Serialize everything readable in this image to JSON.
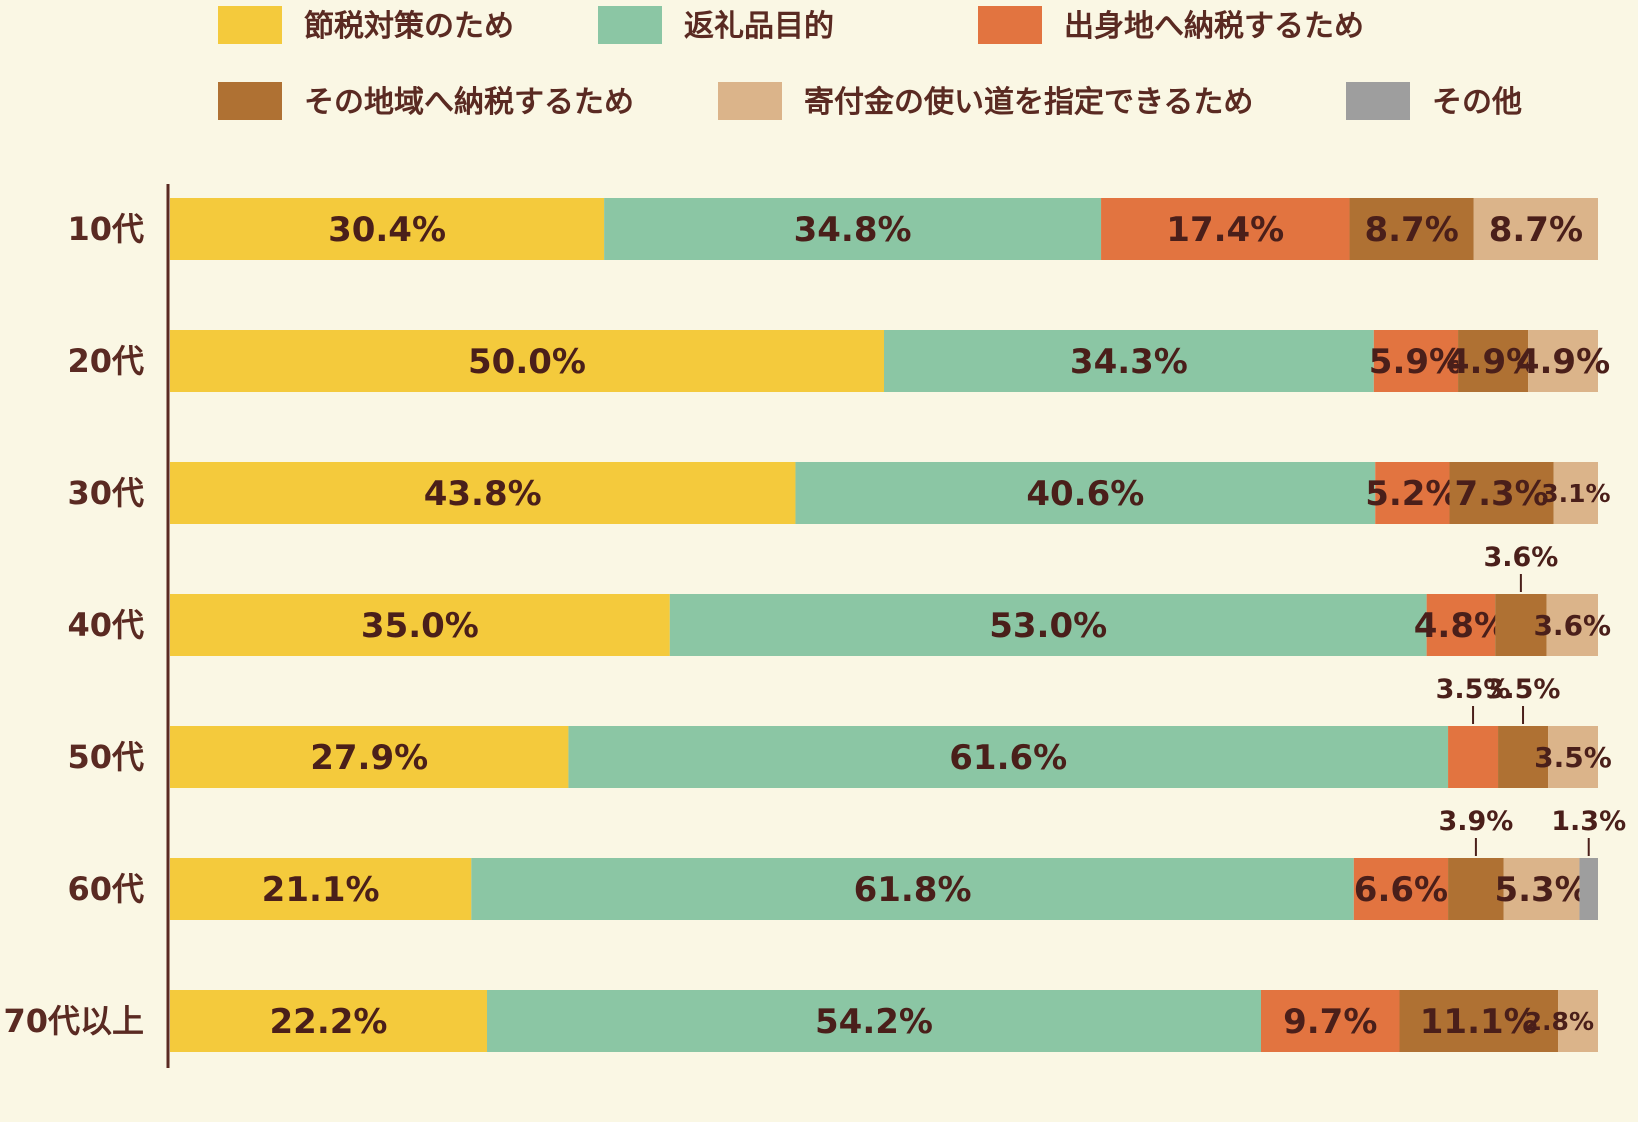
{
  "chart_data": {
    "type": "bar",
    "orientation": "horizontal",
    "stacked": true,
    "unit": "%",
    "legend_position": "top",
    "categories": [
      "10代",
      "20代",
      "30代",
      "40代",
      "50代",
      "60代",
      "70代以上"
    ],
    "series": [
      {
        "name": "節税対策のため",
        "color": "#f4ca3c",
        "values": [
          30.4,
          50.0,
          43.8,
          35.0,
          27.9,
          21.1,
          22.2
        ]
      },
      {
        "name": "返礼品目的",
        "color": "#8bc6a4",
        "values": [
          34.8,
          34.3,
          40.6,
          53.0,
          61.6,
          61.8,
          54.2
        ]
      },
      {
        "name": "出身地へ納税するため",
        "color": "#e27440",
        "values": [
          17.4,
          5.9,
          5.2,
          4.8,
          3.5,
          6.6,
          9.7
        ]
      },
      {
        "name": "その地域へ納税するため",
        "color": "#af7133",
        "values": [
          8.7,
          4.9,
          7.3,
          3.6,
          3.5,
          3.9,
          11.1
        ]
      },
      {
        "name": "寄付金の使い道を指定できるため",
        "color": "#dbb48a",
        "values": [
          8.7,
          4.9,
          3.1,
          3.6,
          3.5,
          5.3,
          2.8
        ]
      },
      {
        "name": "その他",
        "color": "#9e9e9e",
        "values": [
          0,
          0,
          0,
          0,
          0,
          1.3,
          0
        ]
      }
    ],
    "labels": [
      [
        "30.4%",
        "34.8%",
        "17.4%",
        "8.7%",
        "8.7%",
        ""
      ],
      [
        "50.0%",
        "34.3%",
        "5.9%",
        "4.9%",
        "4.9%",
        ""
      ],
      [
        "43.8%",
        "40.6%",
        "5.2%",
        "7.3%",
        "3.1%",
        ""
      ],
      [
        "35.0%",
        "53.0%",
        "4.8%",
        "3.6%",
        "3.6%",
        ""
      ],
      [
        "27.9%",
        "61.6%",
        "3.5%",
        "3.5%",
        "3.5%",
        ""
      ],
      [
        "21.1%",
        "61.8%",
        "6.6%",
        "3.9%",
        "5.3%",
        "1.3%"
      ],
      [
        "22.2%",
        "54.2%",
        "9.7%",
        "11.1%",
        "2.8%",
        ""
      ]
    ],
    "xlim": [
      0,
      100
    ],
    "grid": false
  }
}
